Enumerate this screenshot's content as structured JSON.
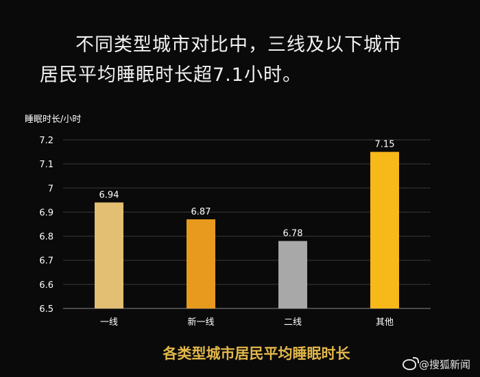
{
  "headline": {
    "line1": "不同类型城市对比中，三线及以下城市",
    "line2": "居民平均睡眠时长超7.1小时。"
  },
  "chart_data": {
    "type": "bar",
    "title": "各类型城市居民平均睡眠时长",
    "ylabel": "睡眠时长/小时",
    "xlabel": "",
    "categories": [
      "一线",
      "新一线",
      "二线",
      "其他"
    ],
    "values": [
      6.94,
      6.87,
      6.78,
      7.15
    ],
    "value_labels": [
      "6.94",
      "6.87",
      "6.78",
      "7.15"
    ],
    "ylim": [
      6.5,
      7.2
    ],
    "yticks": [
      6.5,
      6.6,
      6.7,
      6.8,
      6.9,
      7,
      7.1,
      7.2
    ],
    "ytick_labels": [
      "6.5",
      "6.6",
      "6.7",
      "6.8",
      "6.9",
      "7",
      "7.1",
      "7.2"
    ],
    "bar_colors": [
      "#e3bf73",
      "#e79a1e",
      "#a8a8a8",
      "#f7b81a"
    ],
    "title_color": "#e3b84a",
    "grid": true
  },
  "watermark": {
    "text": "@搜狐新闻"
  }
}
